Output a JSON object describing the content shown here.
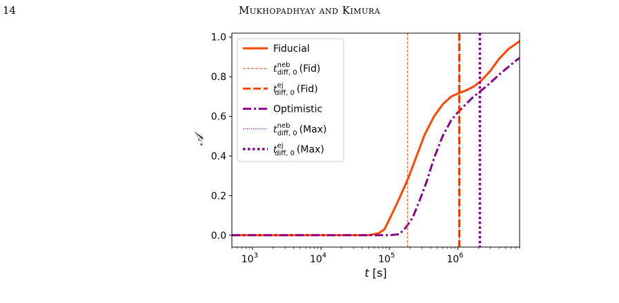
{
  "header": {
    "page_number": "14",
    "running_head": "Mukhopadhyay and Kimura"
  },
  "colors": {
    "fiducial": "#ff4500",
    "max": "#8b008b"
  },
  "chart_data": {
    "type": "line",
    "title": "",
    "xlabel": "t [s]",
    "xlabel_var": "t",
    "xlabel_unit": "[s]",
    "ylabel": "𝒜",
    "xscale": "log",
    "xlim": [
      500,
      8000000
    ],
    "ylim": [
      -0.06,
      1.02
    ],
    "grid": false,
    "legend_position": "top-left",
    "x_ticks": [
      {
        "value": 1000,
        "base": "10",
        "exp": "3"
      },
      {
        "value": 10000,
        "base": "10",
        "exp": "4"
      },
      {
        "value": 100000,
        "base": "10",
        "exp": "5"
      },
      {
        "value": 1000000,
        "base": "10",
        "exp": "6"
      }
    ],
    "y_ticks": [
      0.0,
      0.2,
      0.4,
      0.6,
      0.8,
      1.0
    ],
    "y_tick_labels": [
      "0.0",
      "0.2",
      "0.4",
      "0.6",
      "0.8",
      "1.0"
    ],
    "series": [
      {
        "name": "Fiducial",
        "style": "solid",
        "color": "#ff4500",
        "points": [
          [
            500,
            0.0
          ],
          [
            10000,
            0.0
          ],
          [
            50000,
            0.0
          ],
          [
            70000,
            0.01
          ],
          [
            85000,
            0.03
          ],
          [
            100000,
            0.08
          ],
          [
            125000,
            0.15
          ],
          [
            150000,
            0.21
          ],
          [
            190000,
            0.29
          ],
          [
            250000,
            0.4
          ],
          [
            330000,
            0.51
          ],
          [
            450000,
            0.6
          ],
          [
            600000,
            0.66
          ],
          [
            800000,
            0.7
          ],
          [
            1000000,
            0.715
          ],
          [
            1300000,
            0.73
          ],
          [
            1700000,
            0.75
          ],
          [
            2200000,
            0.78
          ],
          [
            3000000,
            0.83
          ],
          [
            4000000,
            0.89
          ],
          [
            5500000,
            0.94
          ],
          [
            7000000,
            0.965
          ],
          [
            8000000,
            0.98
          ]
        ]
      },
      {
        "name": "Optimistic",
        "style": "dashdot",
        "color": "#8b008b",
        "points": [
          [
            500,
            0.0
          ],
          [
            10000,
            0.0
          ],
          [
            100000,
            0.0
          ],
          [
            140000,
            0.005
          ],
          [
            175000,
            0.04
          ],
          [
            220000,
            0.09
          ],
          [
            280000,
            0.18
          ],
          [
            350000,
            0.27
          ],
          [
            450000,
            0.39
          ],
          [
            600000,
            0.5
          ],
          [
            800000,
            0.58
          ],
          [
            1000000,
            0.62
          ],
          [
            1300000,
            0.66
          ],
          [
            1700000,
            0.7
          ],
          [
            2200000,
            0.73
          ],
          [
            3000000,
            0.77
          ],
          [
            4000000,
            0.81
          ],
          [
            5500000,
            0.85
          ],
          [
            7000000,
            0.88
          ],
          [
            8000000,
            0.895
          ]
        ]
      }
    ],
    "vlines": [
      {
        "name": "t_diff,0^neb (Fid)",
        "x": 185000,
        "style": "dashed-thin",
        "color": "#ff4500"
      },
      {
        "name": "t_diff,0^ej (Fid)",
        "x": 1050000,
        "style": "dashed-thick",
        "color": "#ff4500"
      },
      {
        "name": "t_diff,0^neb (Max)",
        "x": 1050000,
        "style": "dotted-thin",
        "color": "#8b008b"
      },
      {
        "name": "t_diff,0^ej (Max)",
        "x": 2100000,
        "style": "dotted-thick",
        "color": "#8b008b"
      }
    ],
    "legend": [
      {
        "kind": "plain",
        "label": "Fiducial",
        "style": "solid",
        "color": "#ff4500"
      },
      {
        "kind": "tdiff",
        "sup": "neb",
        "sub": "diff, 0",
        "tag": "(Fid)",
        "style": "dashed-thin",
        "color": "#ff4500"
      },
      {
        "kind": "tdiff",
        "sup": "ej",
        "sub": "diff, 0",
        "tag": "(Fid)",
        "style": "dashed-thick",
        "color": "#ff4500"
      },
      {
        "kind": "plain",
        "label": "Optimistic",
        "style": "dashdot",
        "color": "#8b008b"
      },
      {
        "kind": "tdiff",
        "sup": "neb",
        "sub": "diff, 0",
        "tag": "(Max)",
        "style": "dotted-thin",
        "color": "#8b008b"
      },
      {
        "kind": "tdiff",
        "sup": "ej",
        "sub": "diff, 0",
        "tag": "(Max)",
        "style": "dotted-thick",
        "color": "#8b008b"
      }
    ]
  }
}
